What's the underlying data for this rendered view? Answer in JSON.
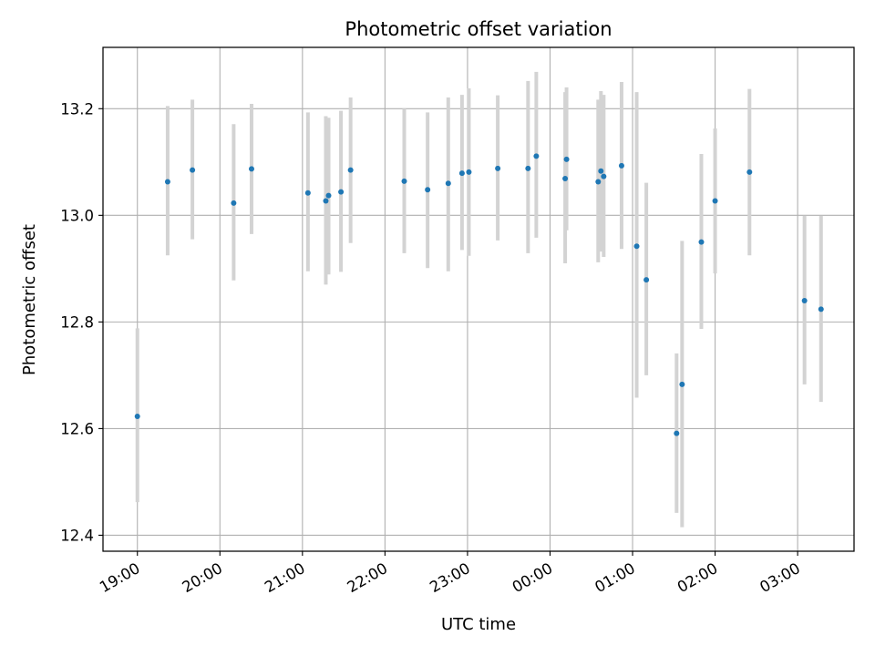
{
  "chart_data": {
    "type": "scatter",
    "title": "Photometric offset variation",
    "xlabel": "UTC time",
    "ylabel": "Photometric offset",
    "grid": true,
    "legend": "none",
    "x_ticks": [
      "19:00",
      "20:00",
      "21:00",
      "22:00",
      "23:00",
      "00:00",
      "01:00",
      "02:00",
      "03:00"
    ],
    "y_ticks": [
      "12.4",
      "12.6",
      "12.8",
      "13.0",
      "13.2"
    ],
    "xlim": [
      "18:35",
      "27:41"
    ],
    "ylim": [
      12.37,
      13.315
    ],
    "x_unit": "UTC time (hours, values past 24 are the next day)",
    "colors": {
      "points": "#1f77b4",
      "errorbars": "#d3d3d3",
      "grid": "#b0b0b0"
    },
    "series": [
      {
        "points": [
          {
            "x": "19:00",
            "y": 12.623,
            "yerr_low": 12.462,
            "yerr_high": 12.788
          },
          {
            "x": "19:22",
            "y": 13.063,
            "yerr_low": 12.925,
            "yerr_high": 13.205
          },
          {
            "x": "19:40",
            "y": 13.085,
            "yerr_low": 12.955,
            "yerr_high": 13.217
          },
          {
            "x": "20:10",
            "y": 13.023,
            "yerr_low": 12.878,
            "yerr_high": 13.171
          },
          {
            "x": "20:23",
            "y": 13.087,
            "yerr_low": 12.965,
            "yerr_high": 13.209
          },
          {
            "x": "21:04",
            "y": 13.042,
            "yerr_low": 12.895,
            "yerr_high": 13.193
          },
          {
            "x": "21:17",
            "y": 13.027,
            "yerr_low": 12.87,
            "yerr_high": 13.186
          },
          {
            "x": "21:19",
            "y": 13.037,
            "yerr_low": 12.889,
            "yerr_high": 13.183
          },
          {
            "x": "21:28",
            "y": 13.044,
            "yerr_low": 12.894,
            "yerr_high": 13.196
          },
          {
            "x": "21:35",
            "y": 13.085,
            "yerr_low": 12.948,
            "yerr_high": 13.221
          },
          {
            "x": "22:14",
            "y": 13.064,
            "yerr_low": 12.929,
            "yerr_high": 13.2
          },
          {
            "x": "22:31",
            "y": 13.048,
            "yerr_low": 12.901,
            "yerr_high": 13.193
          },
          {
            "x": "22:46",
            "y": 13.06,
            "yerr_low": 12.895,
            "yerr_high": 13.221
          },
          {
            "x": "22:56",
            "y": 13.079,
            "yerr_low": 12.935,
            "yerr_high": 13.226
          },
          {
            "x": "23:01",
            "y": 13.081,
            "yerr_low": 12.924,
            "yerr_high": 13.238
          },
          {
            "x": "23:22",
            "y": 13.088,
            "yerr_low": 12.953,
            "yerr_high": 13.225
          },
          {
            "x": "23:44",
            "y": 13.088,
            "yerr_low": 12.929,
            "yerr_high": 13.252
          },
          {
            "x": "23:50",
            "y": 13.111,
            "yerr_low": 12.958,
            "yerr_high": 13.269
          },
          {
            "x": "24:11",
            "y": 13.069,
            "yerr_low": 12.91,
            "yerr_high": 13.231
          },
          {
            "x": "24:12",
            "y": 13.105,
            "yerr_low": 12.972,
            "yerr_high": 13.24
          },
          {
            "x": "24:35",
            "y": 13.063,
            "yerr_low": 12.912,
            "yerr_high": 13.217
          },
          {
            "x": "24:37",
            "y": 13.083,
            "yerr_low": 12.932,
            "yerr_high": 13.233
          },
          {
            "x": "24:39",
            "y": 13.073,
            "yerr_low": 12.922,
            "yerr_high": 13.226
          },
          {
            "x": "24:52",
            "y": 13.093,
            "yerr_low": 12.937,
            "yerr_high": 13.25
          },
          {
            "x": "25:03",
            "y": 12.942,
            "yerr_low": 12.658,
            "yerr_high": 13.231
          },
          {
            "x": "25:10",
            "y": 12.879,
            "yerr_low": 12.7,
            "yerr_high": 13.061
          },
          {
            "x": "25:32",
            "y": 12.591,
            "yerr_low": 12.442,
            "yerr_high": 12.741
          },
          {
            "x": "25:36",
            "y": 12.683,
            "yerr_low": 12.415,
            "yerr_high": 12.952
          },
          {
            "x": "25:50",
            "y": 12.95,
            "yerr_low": 12.787,
            "yerr_high": 13.115
          },
          {
            "x": "26:00",
            "y": 13.027,
            "yerr_low": 12.891,
            "yerr_high": 13.163
          },
          {
            "x": "26:25",
            "y": 13.081,
            "yerr_low": 12.925,
            "yerr_high": 13.237
          },
          {
            "x": "27:05",
            "y": 12.84,
            "yerr_low": 12.683,
            "yerr_high": 12.999
          },
          {
            "x": "27:17",
            "y": 12.824,
            "yerr_low": 12.65,
            "yerr_high": 12.999
          }
        ]
      }
    ]
  }
}
